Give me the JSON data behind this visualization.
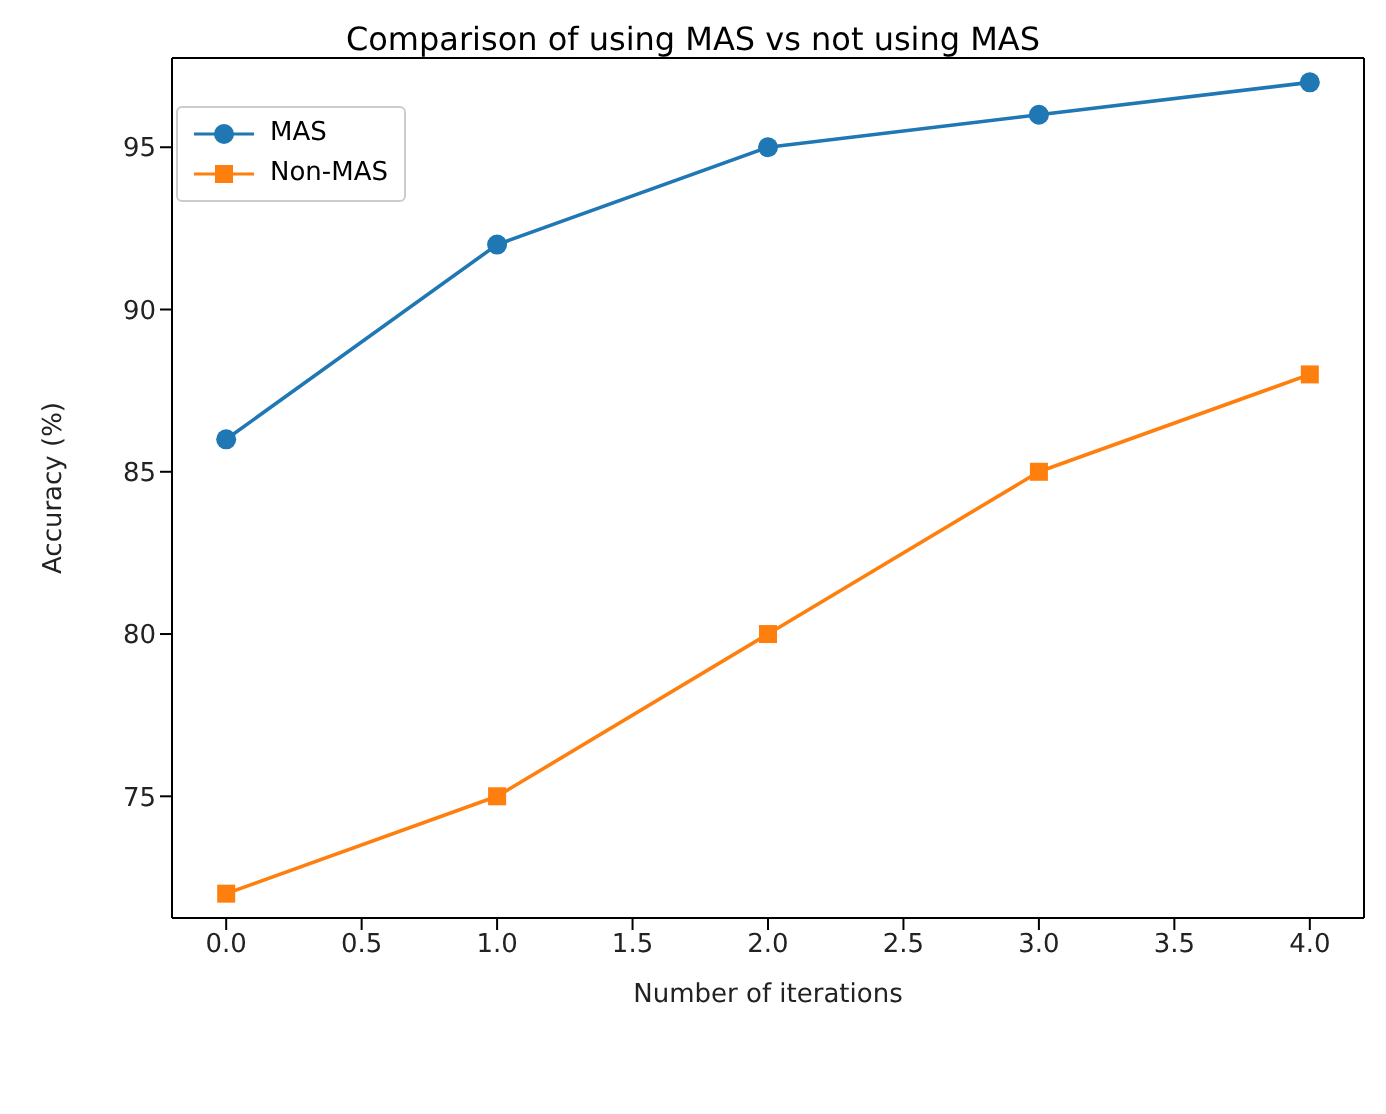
{
  "chart_data": {
    "type": "line",
    "title": "Comparison of using MAS vs not using MAS",
    "xlabel": "Number of iterations",
    "ylabel": "Accuracy (%)",
    "x": [
      0,
      1,
      2,
      3,
      4
    ],
    "series": [
      {
        "name": "MAS",
        "color": "#1f77b4",
        "marker": "circle",
        "values": [
          86,
          92,
          95,
          96,
          97
        ]
      },
      {
        "name": "Non-MAS",
        "color": "#ff7f0e",
        "marker": "square",
        "values": [
          72,
          75,
          80,
          85,
          88
        ]
      }
    ],
    "xlim": [
      -0.2,
      4.2
    ],
    "xticks": [
      {
        "value": 0,
        "label": "0.0"
      },
      {
        "value": 0.5,
        "label": "0.5"
      },
      {
        "value": 1,
        "label": "1.0"
      },
      {
        "value": 1.5,
        "label": "1.5"
      },
      {
        "value": 2,
        "label": "2.0"
      },
      {
        "value": 2.5,
        "label": "2.5"
      },
      {
        "value": 3,
        "label": "3.0"
      },
      {
        "value": 3.5,
        "label": "3.5"
      },
      {
        "value": 4,
        "label": "4.0"
      }
    ],
    "ylim": [
      71.25,
      97.75
    ],
    "yticks": [
      75,
      80,
      85,
      90,
      95
    ],
    "grid": false,
    "legend": "top left",
    "line_style": "solid"
  }
}
